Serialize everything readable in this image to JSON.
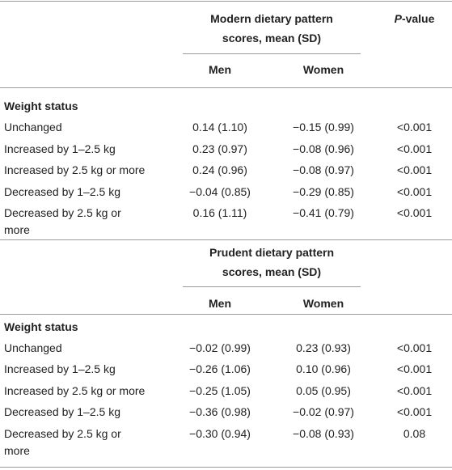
{
  "sections": [
    {
      "group_header": "Modern dietary pattern scores, mean (SD)",
      "group_header_lines": [
        "Modern dietary pattern",
        "scores, mean (SD)"
      ],
      "pvalue_header_italic": "P",
      "pvalue_header_rest": "-value",
      "col_men": "Men",
      "col_women": "Women",
      "category_label": "Weight status",
      "rows": [
        {
          "label": "Unchanged",
          "men": "0.14 (1.10)",
          "women": "−0.15 (0.99)",
          "p": "<0.001"
        },
        {
          "label": "Increased by 1–2.5 kg",
          "men": "0.23 (0.97)",
          "women": "−0.08 (0.96)",
          "p": "<0.001"
        },
        {
          "label": "Increased by 2.5 kg or more",
          "men": "0.24 (0.96)",
          "women": "−0.08 (0.97)",
          "p": "<0.001"
        },
        {
          "label": "Decreased by 1–2.5 kg",
          "men": "−0.04 (0.85)",
          "women": "−0.29 (0.85)",
          "p": "<0.001"
        },
        {
          "label": "Decreased by 2.5 kg or more",
          "label_lines": [
            "Decreased by 2.5 kg or",
            "more"
          ],
          "men": "0.16 (1.11)",
          "women": "−0.41 (0.79)",
          "p": "<0.001"
        }
      ]
    },
    {
      "group_header": "Prudent dietary pattern scores, mean (SD)",
      "group_header_lines": [
        "Prudent dietary pattern",
        "scores, mean (SD)"
      ],
      "col_men": "Men",
      "col_women": "Women",
      "category_label": "Weight status",
      "rows": [
        {
          "label": "Unchanged",
          "men": "−0.02 (0.99)",
          "women": "0.23 (0.93)",
          "p": "<0.001"
        },
        {
          "label": "Increased by 1–2.5 kg",
          "men": "−0.26 (1.06)",
          "women": "0.10 (0.96)",
          "p": "<0.001"
        },
        {
          "label": "Increased by 2.5 kg or more",
          "men": "−0.25 (1.05)",
          "women": "0.05 (0.95)",
          "p": "<0.001"
        },
        {
          "label": "Decreased by 1–2.5 kg",
          "men": "−0.36 (0.98)",
          "women": "−0.02 (0.97)",
          "p": "<0.001"
        },
        {
          "label": "Decreased by 2.5 kg or more",
          "label_lines": [
            "Decreased by 2.5 kg or",
            "more"
          ],
          "men": "−0.30 (0.94)",
          "women": "−0.08 (0.93)",
          "p": "0.08"
        }
      ]
    }
  ]
}
